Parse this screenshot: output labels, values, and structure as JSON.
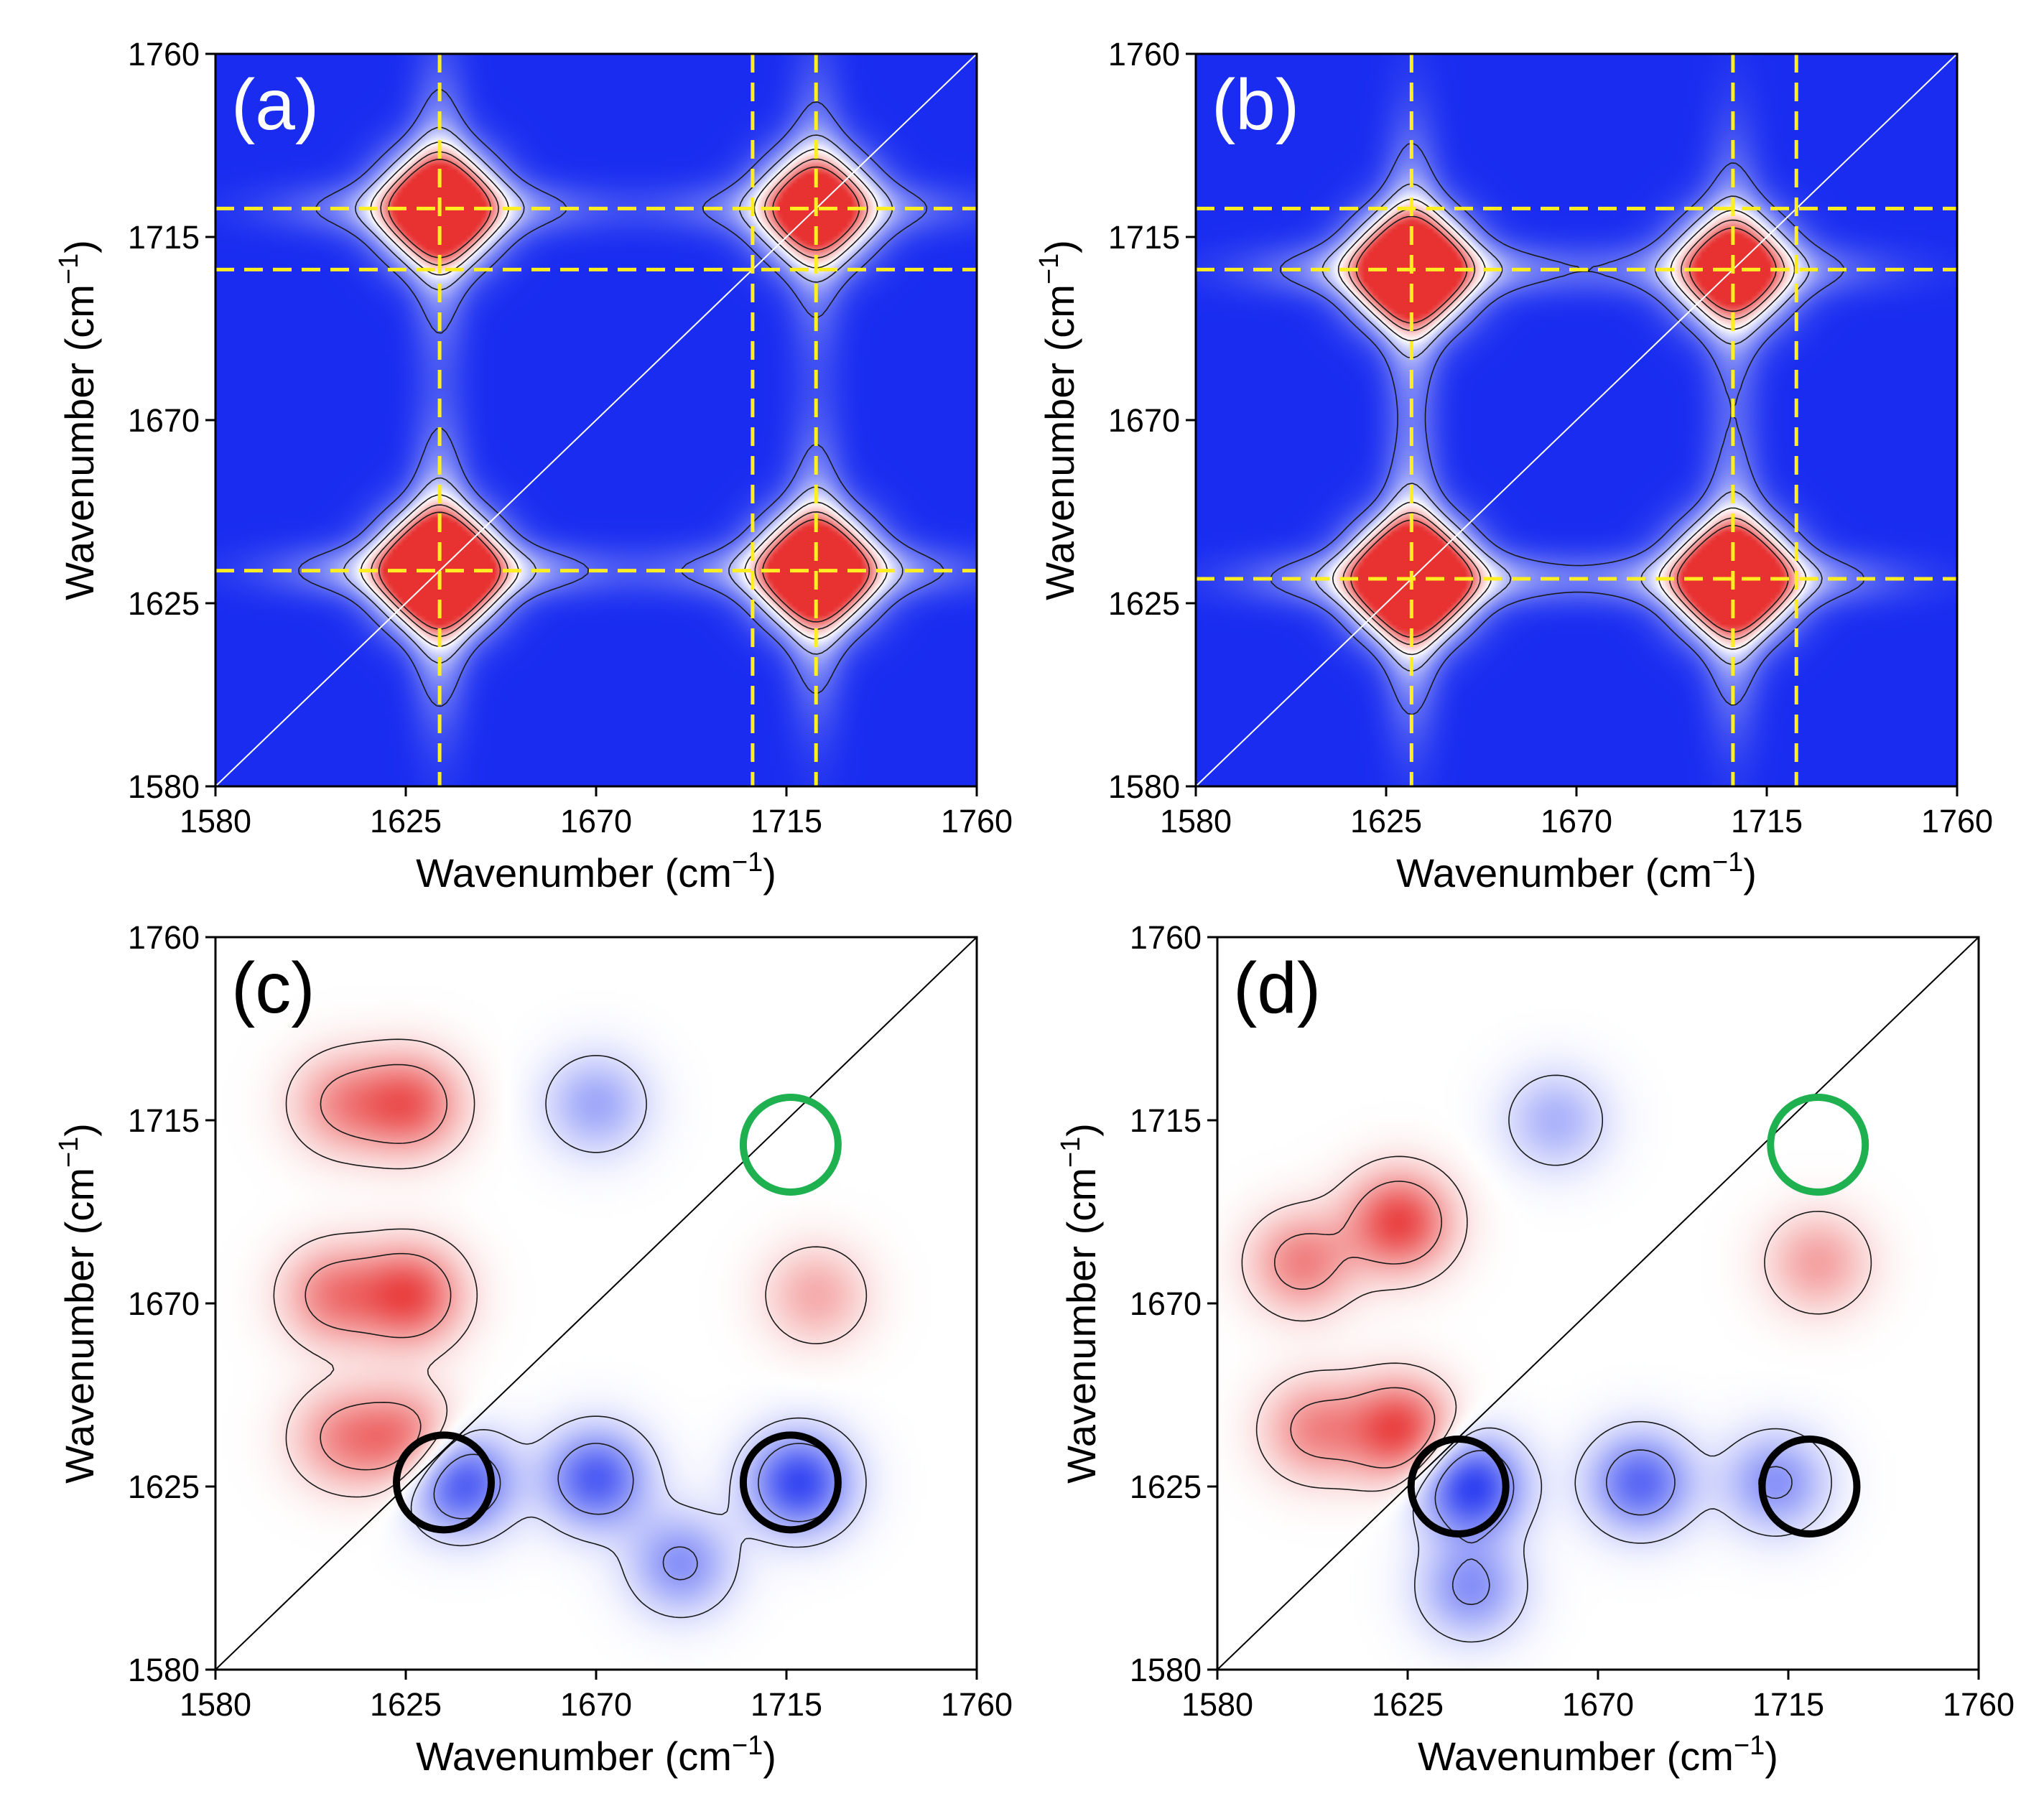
{
  "figure": {
    "axis_label": "Wavenumber (cm",
    "axis_label_sup": "−1",
    "axis_label_close": ")"
  },
  "colors": {
    "map_blue": "#1428f0",
    "map_white": "#ffffff",
    "map_red": "#e83232",
    "guide_yellow": "#ffee22",
    "circle_green": "#1fb050",
    "circle_black": "#000000",
    "contour": "#1a1a1a"
  },
  "chart_data": [
    {
      "id": "a",
      "type": "heatmap",
      "panel_label": "(a)",
      "title": "",
      "xlabel": "Wavenumber (cm−1)",
      "ylabel": "Wavenumber (cm−1)",
      "xlim": [
        1580,
        1760
      ],
      "ylim": [
        1580,
        1760
      ],
      "xticks": [
        "1580",
        "1625",
        "1670",
        "1715",
        "1760"
      ],
      "yticks": [
        "1580",
        "1625",
        "1670",
        "1715",
        "1760"
      ],
      "colormap": "blue-white-red",
      "background_level": -1,
      "peaks": [
        {
          "x": 1633,
          "y": 1633,
          "amp": 1.0
        },
        {
          "x": 1633,
          "y": 1722,
          "amp": 0.75
        },
        {
          "x": 1722,
          "y": 1633,
          "amp": 0.8
        },
        {
          "x": 1722,
          "y": 1722,
          "amp": 0.6
        }
      ],
      "guide_lines_x": [
        1633,
        1707,
        1722
      ],
      "guide_lines_y": [
        1633,
        1707,
        1722
      ],
      "circles_green": [],
      "circles_black": []
    },
    {
      "id": "b",
      "type": "heatmap",
      "panel_label": "(b)",
      "title": "",
      "xlabel": "Wavenumber (cm−1)",
      "ylabel": "Wavenumber (cm−1)",
      "xlim": [
        1580,
        1760
      ],
      "ylim": [
        1580,
        1760
      ],
      "xticks": [
        "1580",
        "1625",
        "1670",
        "1715",
        "1760"
      ],
      "yticks": [
        "1580",
        "1625",
        "1670",
        "1715",
        "1760"
      ],
      "colormap": "blue-white-red",
      "background_level": -1,
      "peaks": [
        {
          "x": 1631,
          "y": 1631,
          "amp": 1.0
        },
        {
          "x": 1631,
          "y": 1707,
          "amp": 0.85
        },
        {
          "x": 1707,
          "y": 1631,
          "amp": 0.85
        },
        {
          "x": 1707,
          "y": 1707,
          "amp": 0.6
        }
      ],
      "guide_lines_x": [
        1631,
        1707,
        1722
      ],
      "guide_lines_y": [
        1631,
        1707,
        1722
      ],
      "circles_green": [],
      "circles_black": []
    },
    {
      "id": "c",
      "type": "heatmap",
      "panel_label": "(c)",
      "title": "",
      "xlabel": "Wavenumber (cm−1)",
      "ylabel": "Wavenumber (cm−1)",
      "xlim": [
        1580,
        1760
      ],
      "ylim": [
        1580,
        1760
      ],
      "xticks": [
        "1580",
        "1625",
        "1670",
        "1715",
        "1760"
      ],
      "yticks": [
        "1580",
        "1625",
        "1670",
        "1715",
        "1760"
      ],
      "colormap": "blue-white-red",
      "background_level": 0,
      "peaks": [
        {
          "x": 1608,
          "y": 1672,
          "amp": 0.6
        },
        {
          "x": 1626,
          "y": 1672,
          "amp": 0.85
        },
        {
          "x": 1610,
          "y": 1719,
          "amp": 0.5
        },
        {
          "x": 1626,
          "y": 1719,
          "amp": 0.75
        },
        {
          "x": 1625,
          "y": 1637,
          "amp": 0.6
        },
        {
          "x": 1610,
          "y": 1637,
          "amp": 0.5
        },
        {
          "x": 1722,
          "y": 1672,
          "amp": 0.4
        },
        {
          "x": 1638,
          "y": 1626,
          "amp": -0.8
        },
        {
          "x": 1670,
          "y": 1627,
          "amp": -0.75
        },
        {
          "x": 1718,
          "y": 1626,
          "amp": -0.85
        },
        {
          "x": 1670,
          "y": 1719,
          "amp": -0.4
        },
        {
          "x": 1690,
          "y": 1606,
          "amp": -0.5
        }
      ],
      "guide_lines_x": [],
      "guide_lines_y": [],
      "circles_green": [
        {
          "x": 1716,
          "y": 1709
        }
      ],
      "circles_black": [
        {
          "x": 1634,
          "y": 1626
        },
        {
          "x": 1716,
          "y": 1626
        }
      ]
    },
    {
      "id": "d",
      "type": "heatmap",
      "panel_label": "(d)",
      "title": "",
      "xlabel": "Wavenumber (cm−1)",
      "ylabel": "Wavenumber (cm−1)",
      "xlim": [
        1580,
        1760
      ],
      "ylim": [
        1580,
        1760
      ],
      "xticks": [
        "1580",
        "1625",
        "1670",
        "1715",
        "1760"
      ],
      "yticks": [
        "1580",
        "1625",
        "1670",
        "1715",
        "1760"
      ],
      "colormap": "blue-white-red",
      "background_level": 0,
      "peaks": [
        {
          "x": 1623,
          "y": 1690,
          "amp": 0.9
        },
        {
          "x": 1600,
          "y": 1680,
          "amp": 0.6
        },
        {
          "x": 1623,
          "y": 1639,
          "amp": 0.9
        },
        {
          "x": 1603,
          "y": 1639,
          "amp": 0.55
        },
        {
          "x": 1722,
          "y": 1680,
          "amp": 0.45
        },
        {
          "x": 1640,
          "y": 1625,
          "amp": -0.9
        },
        {
          "x": 1680,
          "y": 1626,
          "amp": -0.7
        },
        {
          "x": 1712,
          "y": 1626,
          "amp": -0.5
        },
        {
          "x": 1640,
          "y": 1600,
          "amp": -0.5
        },
        {
          "x": 1660,
          "y": 1715,
          "amp": -0.35
        }
      ],
      "guide_lines_x": [],
      "guide_lines_y": [],
      "circles_green": [
        {
          "x": 1722,
          "y": 1709
        }
      ],
      "circles_black": [
        {
          "x": 1637,
          "y": 1625
        },
        {
          "x": 1720,
          "y": 1625
        }
      ]
    }
  ]
}
